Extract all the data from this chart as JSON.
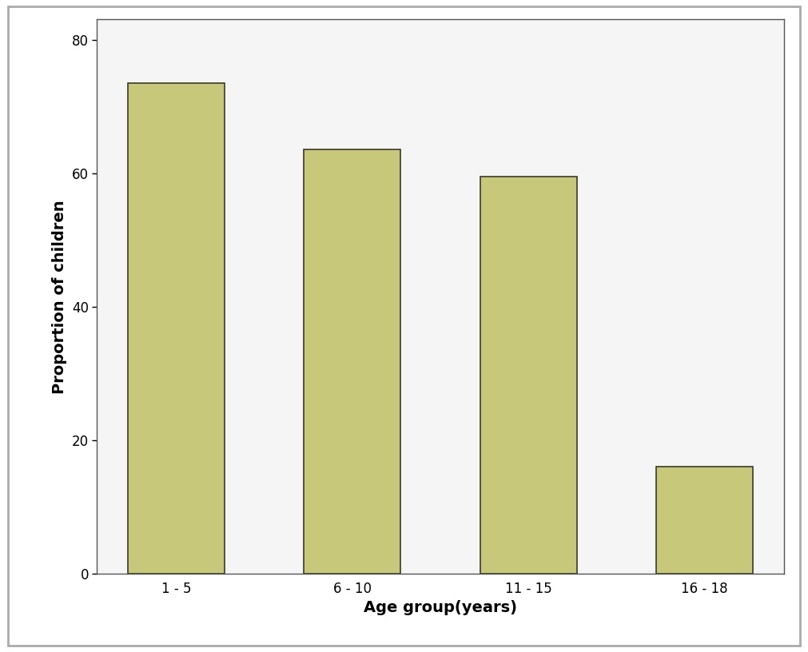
{
  "categories": [
    "1 - 5",
    "6 - 10",
    "11 - 15",
    "16 - 18"
  ],
  "values": [
    73.5,
    63.5,
    59.5,
    16.0
  ],
  "bar_color": "#c8c87a",
  "bar_edgecolor": "#3a3a2a",
  "xlabel": "Age group(years)",
  "ylabel": "Proportion of children",
  "ylim": [
    0,
    83
  ],
  "yticks": [
    0,
    20,
    40,
    60,
    80
  ],
  "outer_bg_color": "#ffffff",
  "plot_bg_color": "#f0f0f0",
  "inner_bg_color": "#f5f5f5",
  "xlabel_fontsize": 14,
  "ylabel_fontsize": 14,
  "tick_fontsize": 12,
  "bar_width": 0.55
}
